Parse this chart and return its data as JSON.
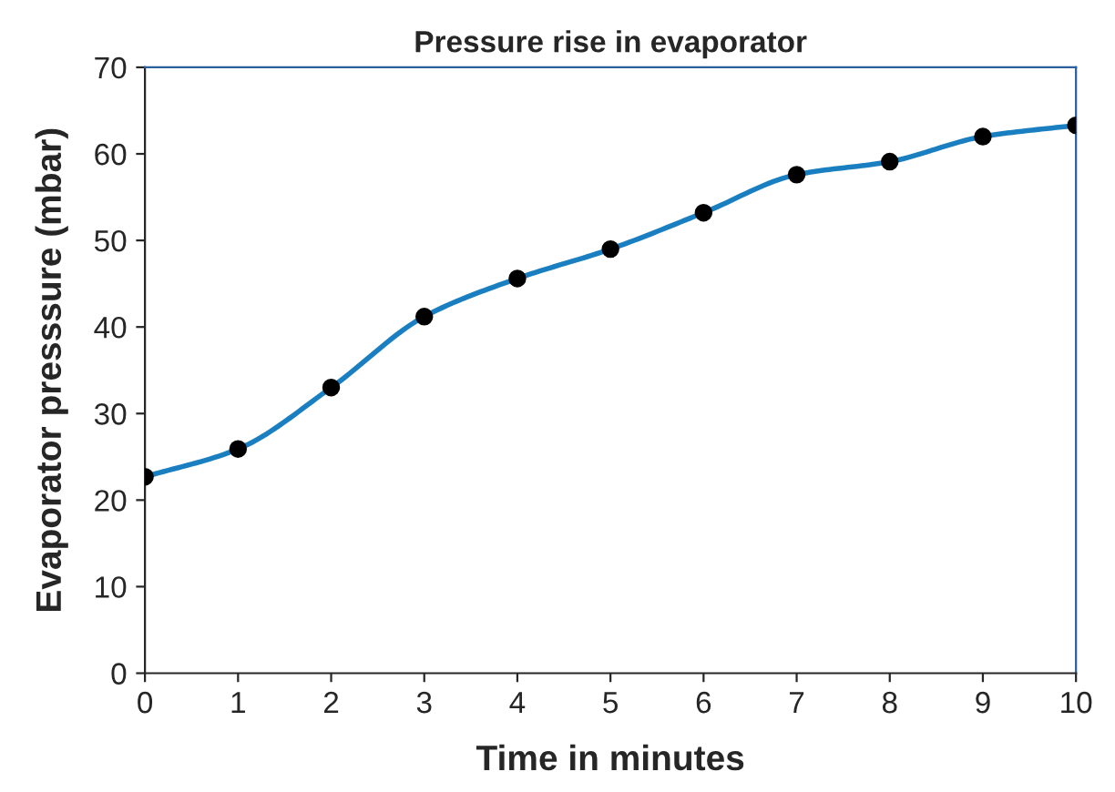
{
  "chart_data": {
    "type": "line",
    "title": "Pressure rise in evaporator",
    "xlabel": "Time in minutes",
    "ylabel": "Evaporator presssure (mbar)",
    "x": [
      0,
      1,
      2,
      3,
      4,
      5,
      6,
      7,
      8,
      9,
      10
    ],
    "series": [
      {
        "color": "#1a7fc1",
        "values": [
          22.7,
          25.9,
          33.0,
          41.2,
          45.6,
          49.0,
          53.2,
          57.6,
          59.1,
          62.0,
          63.3
        ]
      }
    ],
    "xlim": [
      0,
      10
    ],
    "xticks": [
      0,
      1,
      2,
      3,
      4,
      5,
      6,
      7,
      8,
      9,
      10
    ],
    "ylim": [
      0,
      70
    ],
    "yticks": [
      0,
      10,
      20,
      30,
      40,
      50,
      60,
      70
    ],
    "marker": "circle",
    "line_style": "solid",
    "grid": false,
    "legend": false
  }
}
